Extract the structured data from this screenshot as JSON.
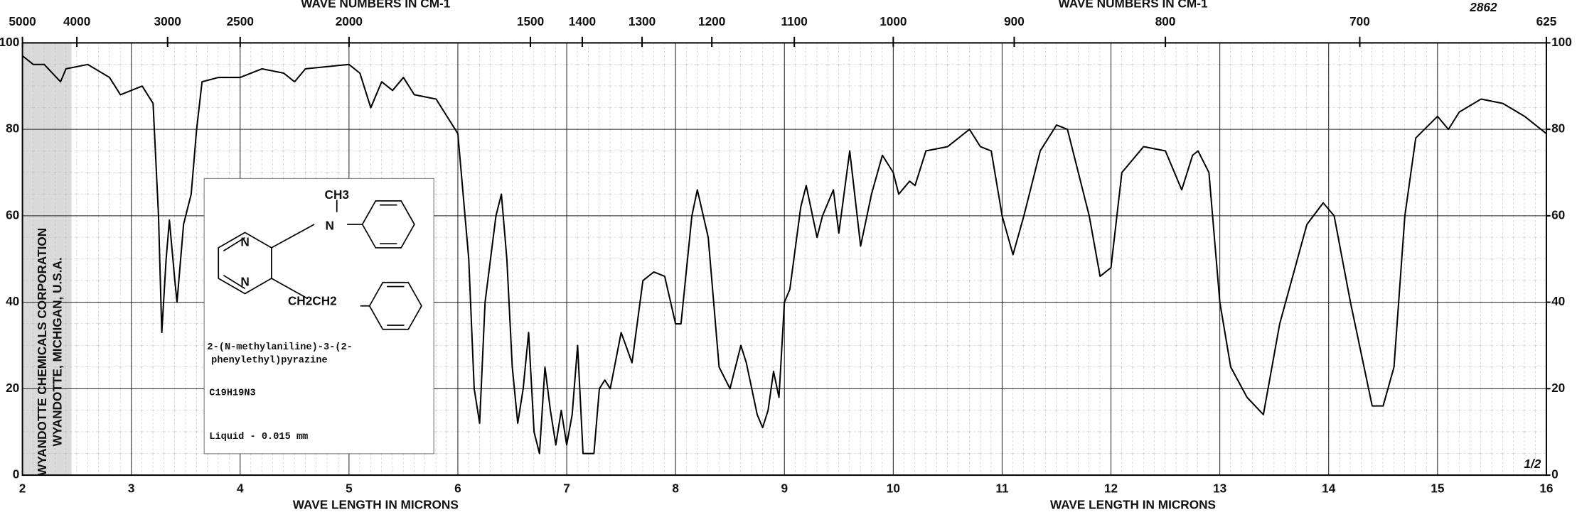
{
  "chart_data": {
    "type": "line",
    "top_axis_labels": [
      "WAVE NUMBERS IN CM-1",
      "WAVE NUMBERS IN CM-1"
    ],
    "x_axis_labels": [
      "WAVE LENGTH IN MICRONS",
      "WAVE LENGTH IN MICRONS"
    ],
    "color": "#000000",
    "grid": true,
    "x": [
      2.0,
      2.1,
      2.2,
      2.35,
      2.4,
      2.6,
      2.8,
      2.9,
      3.0,
      3.1,
      3.2,
      3.25,
      3.28,
      3.32,
      3.35,
      3.4,
      3.42,
      3.48,
      3.55,
      3.6,
      3.65,
      3.8,
      4.0,
      4.2,
      4.4,
      4.5,
      4.6,
      5.0,
      5.1,
      5.2,
      5.3,
      5.4,
      5.5,
      5.6,
      5.8,
      5.9,
      6.0,
      6.1,
      6.15,
      6.2,
      6.25,
      6.35,
      6.4,
      6.45,
      6.5,
      6.55,
      6.6,
      6.65,
      6.7,
      6.75,
      6.8,
      6.85,
      6.9,
      6.95,
      7.0,
      7.05,
      7.1,
      7.15,
      7.25,
      7.3,
      7.35,
      7.4,
      7.5,
      7.6,
      7.7,
      7.8,
      7.9,
      8.0,
      8.05,
      8.15,
      8.2,
      8.3,
      8.4,
      8.5,
      8.6,
      8.65,
      8.75,
      8.8,
      8.85,
      8.9,
      8.95,
      9.0,
      9.05,
      9.15,
      9.2,
      9.3,
      9.35,
      9.45,
      9.5,
      9.6,
      9.7,
      9.8,
      9.9,
      10.0,
      10.05,
      10.15,
      10.2,
      10.3,
      10.5,
      10.6,
      10.7,
      10.8,
      10.9,
      11.0,
      11.1,
      11.2,
      11.35,
      11.5,
      11.6,
      11.8,
      11.9,
      12.0,
      12.1,
      12.3,
      12.5,
      12.65,
      12.75,
      12.8,
      12.9,
      13.0,
      13.1,
      13.25,
      13.4,
      13.55,
      13.8,
      13.95,
      14.05,
      14.2,
      14.3,
      14.4,
      14.5,
      14.6,
      14.7,
      14.8,
      15.0,
      15.1,
      15.2,
      15.4,
      15.6,
      15.8,
      16.0
    ],
    "values": [
      97,
      95,
      95,
      91,
      94,
      95,
      92,
      88,
      89,
      90,
      86,
      60,
      33,
      50,
      59,
      45,
      40,
      58,
      65,
      80,
      91,
      92,
      92,
      94,
      93,
      91,
      94,
      95,
      93,
      85,
      91,
      89,
      92,
      88,
      87,
      83,
      79,
      50,
      20,
      12,
      40,
      60,
      65,
      50,
      25,
      12,
      20,
      33,
      10,
      5,
      25,
      15,
      7,
      15,
      7,
      14,
      30,
      5,
      5,
      20,
      22,
      20,
      33,
      26,
      45,
      47,
      46,
      35,
      35,
      60,
      66,
      55,
      25,
      20,
      30,
      26,
      14,
      11,
      15,
      24,
      18,
      40,
      43,
      62,
      67,
      55,
      60,
      66,
      56,
      75,
      53,
      65,
      74,
      70,
      65,
      68,
      67,
      75,
      76,
      78,
      80,
      76,
      75,
      60,
      51,
      60,
      75,
      81,
      80,
      60,
      46,
      48,
      70,
      76,
      75,
      66,
      74,
      75,
      70,
      40,
      25,
      18,
      14,
      35,
      58,
      63,
      60,
      40,
      28,
      16,
      16,
      25,
      60,
      78,
      83,
      80,
      84,
      87,
      86,
      83,
      79
    ],
    "xlim": [
      2,
      16
    ],
    "xticks": [
      2,
      3,
      4,
      5,
      6,
      7,
      8,
      9,
      10,
      11,
      12,
      13,
      14,
      15,
      16
    ],
    "ylim": [
      0,
      100
    ],
    "yticks": [
      0,
      20,
      40,
      60,
      80,
      100
    ],
    "y2lim": [
      0,
      100
    ],
    "y2ticks": [
      0,
      20,
      40,
      60,
      80,
      100
    ],
    "top_ticks": [
      5000,
      4000,
      3000,
      2500,
      2000,
      1500,
      1400,
      1300,
      1200,
      1100,
      1000,
      900,
      800,
      700,
      625
    ],
    "annotations": [
      "2862",
      "1/2"
    ],
    "side_labels": [
      "WYANDOTTE CHEMICALS CORPORATION",
      "WYANDOTTE, MICHIGAN, U.S.A."
    ],
    "inset": {
      "atoms": [
        "N",
        "N",
        "N",
        "CH3",
        "CH2CH2"
      ],
      "name": [
        "2-(N-methylaniline)-3-(2-",
        "phenylethyl)pyrazine"
      ],
      "formula": "C19H19N3",
      "sample": "Liquid - 0.015 mm"
    }
  }
}
